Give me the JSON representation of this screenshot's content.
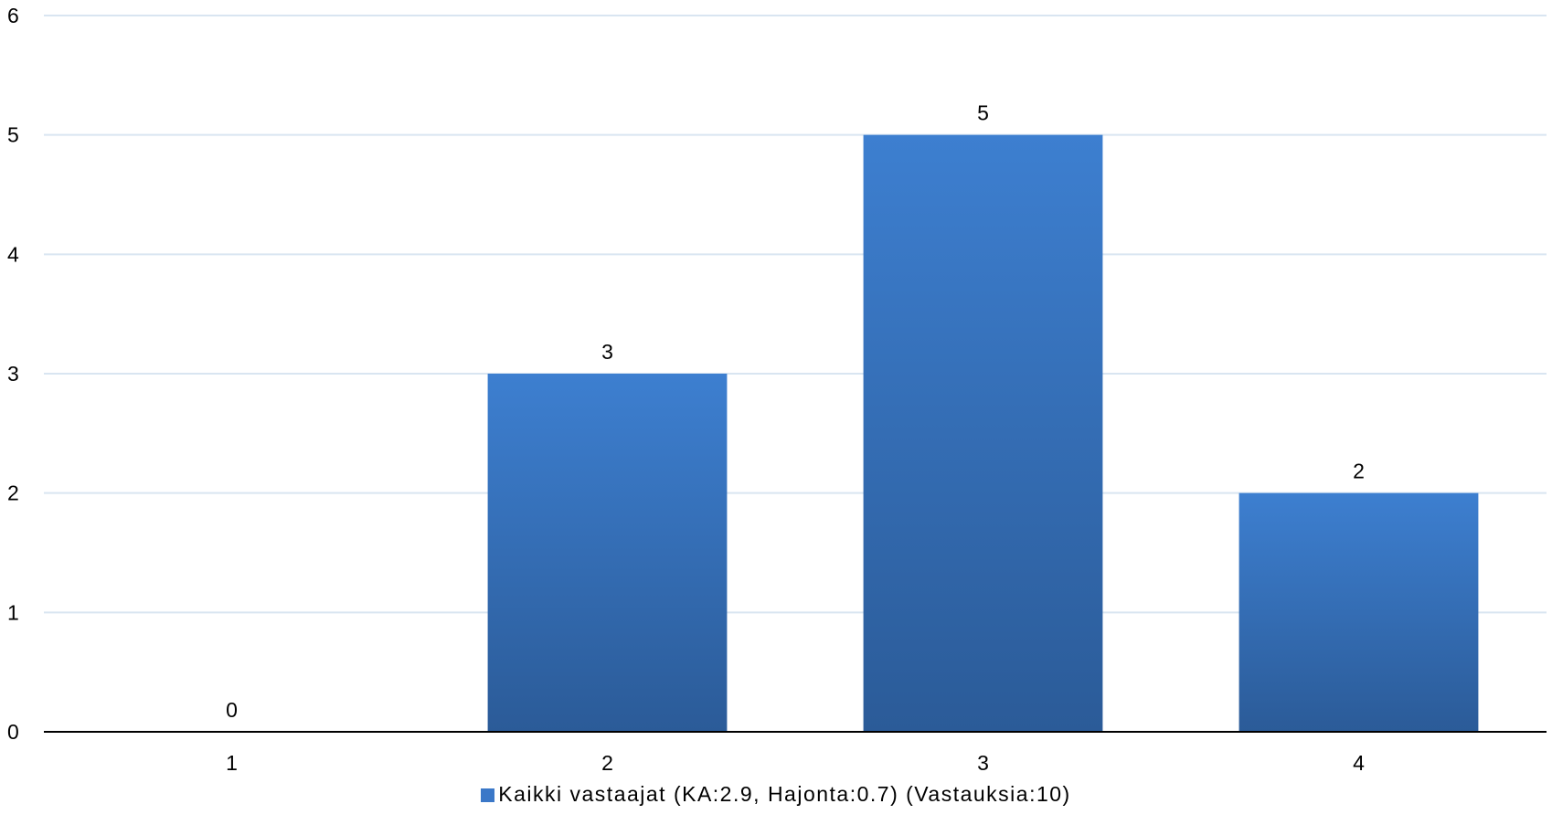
{
  "chart_data": {
    "type": "bar",
    "categories": [
      "1",
      "2",
      "3",
      "4"
    ],
    "series": [
      {
        "name": "Kaikki vastaajat (KA:2.9, Hajonta:0.7) (Vastauksia:10)",
        "values": [
          0,
          3,
          5,
          2
        ]
      }
    ],
    "data_labels": [
      "0",
      "3",
      "5",
      "2"
    ],
    "y_ticks": [
      "0",
      "1",
      "2",
      "3",
      "4",
      "5",
      "6"
    ],
    "ylim": [
      0,
      6
    ],
    "grid": true,
    "legend_position": "bottom-center",
    "colors": {
      "bar_top": "#3d7fd0",
      "bar_bottom": "#2b5b98",
      "legend_swatch": "#3b78c8",
      "gridline": "#d9e5f1",
      "axis": "#000000"
    }
  }
}
